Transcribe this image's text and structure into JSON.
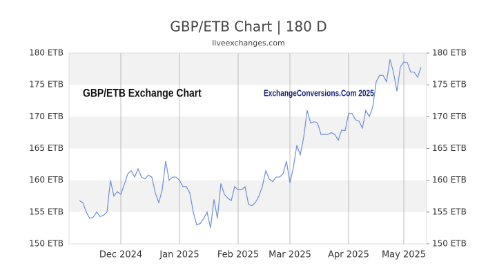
{
  "chart_data": {
    "type": "line",
    "title": "GBP/ETB Chart | 180 D",
    "subtitle": "liveexchanges.com",
    "annotations": [
      "GBP/ETB Exchange Chart",
      "ExchangeConversions.Com 2025"
    ],
    "categories": [
      null,
      null,
      null,
      null,
      null,
      null,
      null,
      null,
      null,
      null,
      null,
      null,
      "Dec 2024",
      null,
      null,
      null,
      null,
      null,
      null,
      null,
      null,
      null,
      null,
      null,
      null,
      null,
      null,
      null,
      null,
      "Jan 2025",
      null,
      null,
      null,
      null,
      null,
      null,
      null,
      null,
      null,
      null,
      null,
      null,
      null,
      null,
      null,
      null,
      "Feb 2025",
      null,
      null,
      null,
      null,
      null,
      null,
      null,
      null,
      null,
      null,
      null,
      null,
      null,
      null,
      "Mar 2025",
      null,
      null,
      null,
      null,
      null,
      null,
      null,
      null,
      null,
      null,
      null,
      null,
      null,
      null,
      null,
      null,
      "Apr 2025",
      null,
      null,
      null,
      null,
      null,
      null,
      null,
      null,
      null,
      null,
      null,
      null,
      null,
      null,
      null,
      "May 2025",
      null,
      null,
      null,
      null,
      null
    ],
    "series": [
      {
        "name": "GBP/ETB",
        "color": "#6b8fd8",
        "values": [
          156.8,
          156.5,
          155,
          154,
          154.2,
          155,
          154.3,
          154.5,
          155,
          160,
          157.5,
          158.2,
          157.8,
          159.3,
          161,
          161.5,
          160.5,
          161.8,
          160.5,
          160.2,
          160.8,
          160.5,
          158,
          156.5,
          158.5,
          163,
          160,
          160.5,
          160.5,
          160,
          159,
          159,
          158,
          155,
          153,
          153.2,
          154,
          155,
          152.5,
          157,
          154,
          159.5,
          157.8,
          157.2,
          156.8,
          159,
          158.5,
          158.5,
          159,
          156.2,
          156,
          156.5,
          157.5,
          159,
          161.5,
          160.2,
          159.8,
          160.5,
          160.5,
          161,
          163,
          159.6,
          162,
          165.5,
          164,
          166.8,
          171,
          169,
          169.2,
          169,
          167.2,
          167.2,
          167.2,
          167.5,
          167.2,
          166.3,
          167.9,
          167.8,
          170.5,
          170.5,
          169.5,
          169.3,
          168.2,
          171,
          170,
          171.5,
          175.5,
          176.5,
          176.5,
          175.5,
          179,
          177,
          174,
          177.8,
          178.6,
          178.5,
          177,
          177,
          176.2,
          177.8
        ]
      }
    ],
    "ylim": [
      150,
      180
    ],
    "yticks": [
      {
        "value": 150,
        "label": "150 ETB"
      },
      {
        "value": 155,
        "label": "155 ETB"
      },
      {
        "value": 160,
        "label": "160 ETB"
      },
      {
        "value": 165,
        "label": "165 ETB"
      },
      {
        "value": 170,
        "label": "170 ETB"
      },
      {
        "value": 175,
        "label": "175 ETB"
      },
      {
        "value": 180,
        "label": "180 ETB"
      }
    ],
    "grid": true
  }
}
